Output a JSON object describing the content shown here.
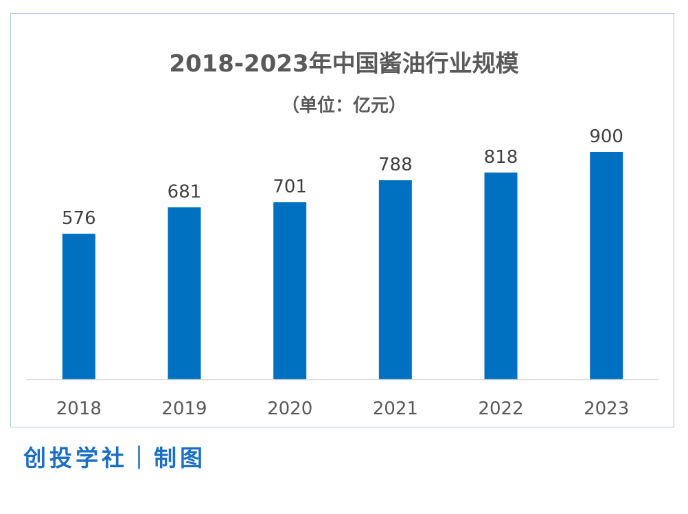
{
  "chart_data": {
    "type": "bar",
    "title": "2018-2023年中国酱油行业规模",
    "subtitle": "（单位：亿元）",
    "categories": [
      "2018",
      "2019",
      "2020",
      "2021",
      "2022",
      "2023"
    ],
    "values": [
      576,
      681,
      701,
      788,
      818,
      900
    ],
    "data_labels": [
      "576",
      "681",
      "701",
      "788",
      "818",
      "900"
    ],
    "ylim": [
      0,
      1000
    ],
    "grid": false,
    "bar_color": "#0070c0",
    "axis_color": "#d9d9d9",
    "label_color": "#404040"
  },
  "footer": {
    "credit": "创投学社｜制图"
  }
}
